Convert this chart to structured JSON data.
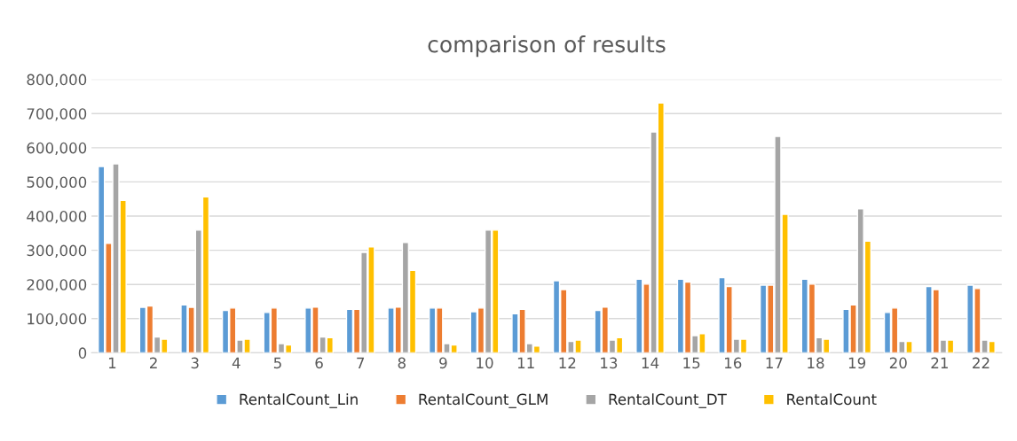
{
  "chart_data": {
    "type": "bar",
    "title": "comparison of results",
    "categories": [
      "1",
      "2",
      "3",
      "4",
      "5",
      "6",
      "7",
      "8",
      "9",
      "10",
      "11",
      "12",
      "13",
      "14",
      "15",
      "16",
      "17",
      "18",
      "19",
      "20",
      "21",
      "22"
    ],
    "series": [
      {
        "name": "RentalCount_Lin",
        "color": "#5b9bd5",
        "values": [
          545000,
          133000,
          140000,
          124000,
          118000,
          131000,
          127000,
          131000,
          131000,
          120000,
          114000,
          211000,
          124000,
          215000,
          215000,
          220000,
          198000,
          215000,
          127000,
          118000,
          194000,
          198000
        ]
      },
      {
        "name": "RentalCount_GLM",
        "color": "#ed7d31",
        "values": [
          320000,
          137000,
          133000,
          131000,
          131000,
          134000,
          127000,
          134000,
          131000,
          131000,
          127000,
          185000,
          134000,
          201000,
          207000,
          194000,
          198000,
          201000,
          140000,
          131000,
          185000,
          188000
        ]
      },
      {
        "name": "RentalCount_DT",
        "color": "#a5a5a5",
        "values": [
          553000,
          46000,
          359000,
          37000,
          27000,
          46000,
          294000,
          323000,
          27000,
          359000,
          27000,
          33000,
          37000,
          646000,
          50000,
          40000,
          633000,
          44000,
          421000,
          33000,
          37000,
          37000
        ]
      },
      {
        "name": "RentalCount",
        "color": "#ffc000",
        "values": [
          446000,
          40000,
          456000,
          40000,
          23000,
          44000,
          310000,
          241000,
          23000,
          359000,
          20000,
          37000,
          44000,
          731000,
          56000,
          40000,
          405000,
          40000,
          327000,
          33000,
          37000,
          33000
        ]
      }
    ],
    "ylim": [
      0,
      800000
    ],
    "yticks": [
      0,
      {
        "value": 100000,
        "label": "100,000"
      },
      {
        "value": 200000,
        "label": "200,000"
      },
      {
        "value": 300000,
        "label": "300,000"
      },
      {
        "value": 400000,
        "label": "400,000"
      },
      {
        "value": 500000,
        "label": "500,000"
      },
      {
        "value": 600000,
        "label": "600,000"
      },
      {
        "value": 700000,
        "label": "700,000"
      },
      {
        "value": 800000,
        "label": "800,000"
      }
    ],
    "grid": "y",
    "legend": "bottom"
  }
}
